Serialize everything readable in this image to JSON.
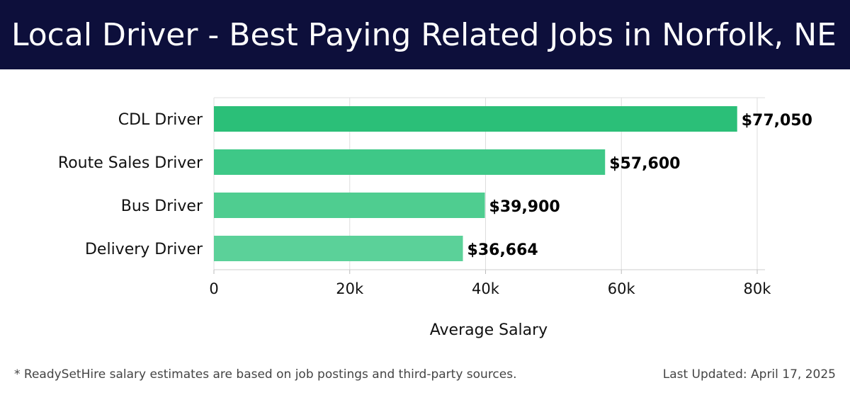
{
  "header": {
    "title": "Local Driver - Best Paying Related Jobs in Norfolk, NE"
  },
  "footer": {
    "footnote": "* ReadySetHire salary estimates are based on job postings and third-party sources.",
    "updated": "Last Updated: April 17, 2025"
  },
  "chart_data": {
    "type": "bar",
    "orientation": "horizontal",
    "title": "Local Driver - Best Paying Related Jobs in Norfolk, NE",
    "xlabel": "Average Salary",
    "ylabel": "",
    "categories": [
      "CDL Driver",
      "Route Sales Driver",
      "Bus Driver",
      "Delivery Driver"
    ],
    "values": [
      77050,
      57600,
      39900,
      36664
    ],
    "data_labels": [
      "$77,050",
      "$57,600",
      "$39,900",
      "$36,664"
    ],
    "xlim": [
      0,
      80000
    ],
    "x_ticks": [
      0,
      20000,
      40000,
      60000,
      80000
    ],
    "x_tick_labels": [
      "0",
      "20k",
      "40k",
      "60k",
      "80k"
    ],
    "grid": true,
    "colors": [
      "#2bbf78",
      "#3ec887",
      "#4fcd90",
      "#5bd199"
    ]
  }
}
